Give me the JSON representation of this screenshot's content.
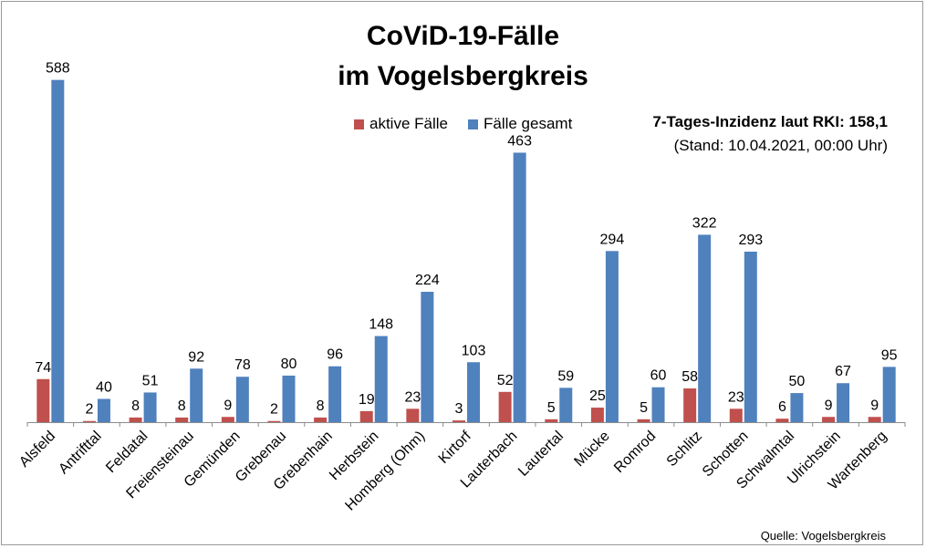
{
  "chart_data": {
    "type": "bar",
    "title": "CoViD-19-Fälle",
    "subtitle": "im Vogelsbergkreis",
    "categories": [
      "Alsfeld",
      "Antrifttal",
      "Feldatal",
      "Freiensteinau",
      "Gemünden",
      "Grebenau",
      "Grebenhain",
      "Herbstein",
      "Homberg (Ohm)",
      "Kirtorf",
      "Lauterbach",
      "Lautertal",
      "Mücke",
      "Romrod",
      "Schlitz",
      "Schotten",
      "Schwalmtal",
      "Ulrichstein",
      "Wartenberg"
    ],
    "series": [
      {
        "name": "aktive Fälle",
        "color": "#c0504d",
        "values": [
          74,
          2,
          8,
          8,
          9,
          2,
          8,
          19,
          23,
          3,
          52,
          5,
          25,
          5,
          58,
          23,
          6,
          9,
          9
        ]
      },
      {
        "name": "Fälle gesamt",
        "color": "#4f81bd",
        "values": [
          588,
          40,
          51,
          92,
          78,
          80,
          96,
          148,
          224,
          103,
          463,
          59,
          294,
          60,
          322,
          293,
          50,
          67,
          95
        ]
      }
    ],
    "ylim": [
      0,
      600
    ],
    "grid": false,
    "legend": "top-center",
    "note_bold": "7-Tages-Inzidenz laut RKI: 158,1",
    "note_normal": "(Stand: 10.04.2021, 00:00 Uhr)",
    "source": "Quelle: Vogelsbergkreis"
  }
}
